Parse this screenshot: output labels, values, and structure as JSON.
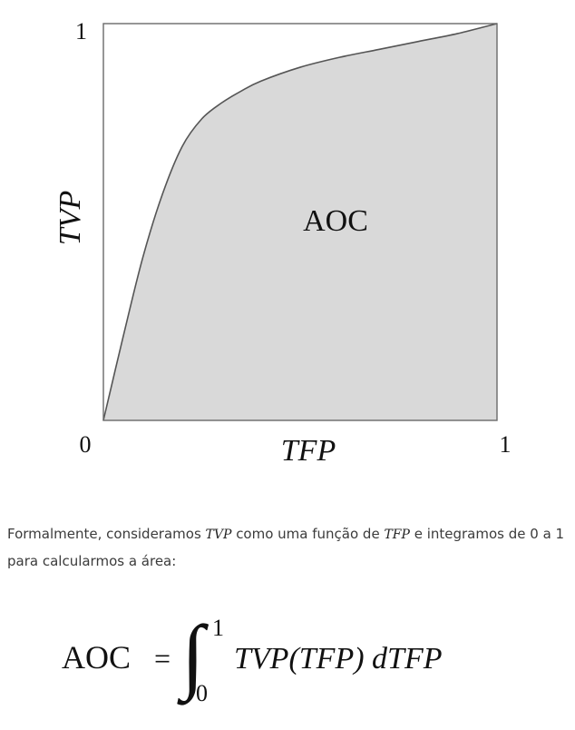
{
  "chart_data": {
    "type": "area",
    "title": "",
    "xlabel": "TFP",
    "ylabel": "TVP",
    "xlim": [
      0,
      1
    ],
    "ylim": [
      0,
      1
    ],
    "x_ticks": [
      "0",
      "1"
    ],
    "y_ticks": [
      "0",
      "1"
    ],
    "grid": false,
    "fill_color": "#d9d9d9",
    "line_color": "#555555",
    "area_label": "AOC",
    "series": [
      {
        "x": [
          0.0,
          0.05,
          0.1,
          0.15,
          0.2,
          0.25,
          0.3,
          0.35,
          0.4,
          0.5,
          0.6,
          0.7,
          0.8,
          0.9,
          1.0
        ],
        "y": [
          0.0,
          0.21,
          0.41,
          0.57,
          0.69,
          0.76,
          0.8,
          0.83,
          0.855,
          0.89,
          0.915,
          0.935,
          0.955,
          0.975,
          1.0
        ]
      }
    ]
  },
  "explanation": {
    "part1": "Formalmente, consideramos ",
    "var1": "TVP",
    "part2": " como uma função de ",
    "var2": "TFP",
    "part3": " e integramos de 0 a 1 para calcularmos a área:"
  },
  "formula": {
    "lhs": "AOC",
    "equals": "=",
    "integral_sign": "∫",
    "upper_limit": "1",
    "lower_limit": "0",
    "integrand": "TVP(TFP) dTFP"
  }
}
